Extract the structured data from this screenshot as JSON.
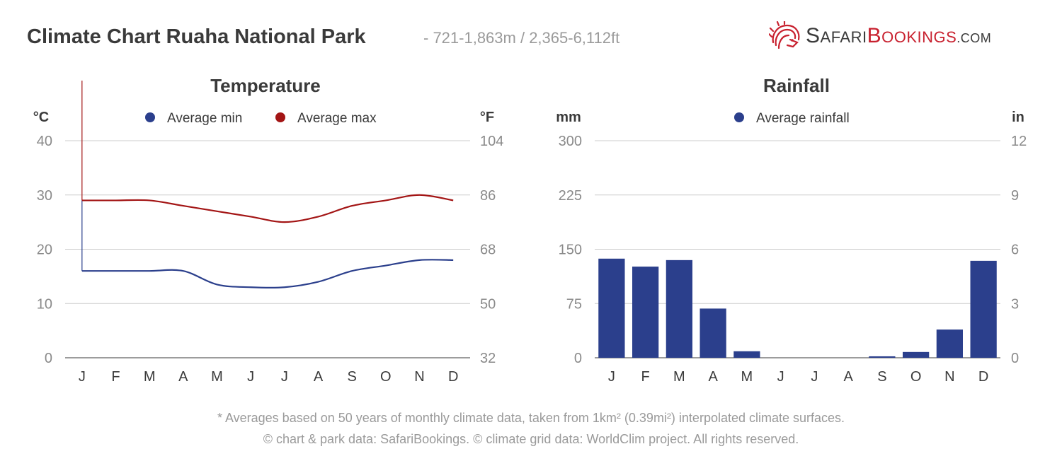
{
  "header": {
    "title": "Climate Chart Ruaha National Park",
    "subtitle": "- 721-1,863m / 2,365-6,112ft"
  },
  "logo": {
    "part1_cap": "S",
    "part1_rest": "AFARI",
    "part2_cap": "B",
    "part2_rest": "OOKINGS",
    "suffix": ".COM",
    "icon": "lion-head-icon",
    "colors": {
      "primary": "#3a3a3a",
      "accent": "#c8212f"
    }
  },
  "footnotes": [
    "* Averages based on 50 years of monthly climate data, taken from 1km² (0.39mi²) interpolated climate surfaces.",
    "© chart & park data: SafariBookings. © climate grid data: WorldClim project. All rights reserved."
  ],
  "chart_data": [
    {
      "type": "line",
      "title": "Temperature",
      "ylabel_left": "°C",
      "ylabel_right": "°F",
      "categories": [
        "J",
        "F",
        "M",
        "A",
        "M",
        "J",
        "J",
        "A",
        "S",
        "O",
        "N",
        "D"
      ],
      "ylim": [
        0,
        40
      ],
      "yticks_left": [
        "0",
        "10",
        "20",
        "30",
        "40"
      ],
      "yticks_right": [
        "32",
        "50",
        "68",
        "86",
        "104"
      ],
      "grid": true,
      "legend_position": "top-center",
      "series": [
        {
          "name": "Average min",
          "color": "#2b3f8c",
          "values": [
            16,
            16,
            16,
            16,
            13.5,
            13,
            13,
            14,
            16,
            17,
            18,
            18
          ]
        },
        {
          "name": "Average max",
          "color": "#a31515",
          "values": [
            29,
            29,
            29,
            28,
            27,
            26,
            25,
            26,
            28,
            29,
            30,
            29
          ]
        }
      ]
    },
    {
      "type": "bar",
      "title": "Rainfall",
      "ylabel_left": "mm",
      "ylabel_right": "in",
      "categories": [
        "J",
        "F",
        "M",
        "A",
        "M",
        "J",
        "J",
        "A",
        "S",
        "O",
        "N",
        "D"
      ],
      "ylim": [
        0,
        300
      ],
      "yticks_left": [
        "0",
        "75",
        "150",
        "225",
        "300"
      ],
      "yticks_right": [
        "0",
        "3",
        "6",
        "9",
        "12"
      ],
      "grid": true,
      "legend_position": "top-center",
      "series": [
        {
          "name": "Average rainfall",
          "color": "#2b3f8c",
          "values": [
            137,
            126,
            135,
            68,
            9,
            0,
            0,
            0,
            2,
            8,
            39,
            134
          ]
        }
      ]
    }
  ]
}
